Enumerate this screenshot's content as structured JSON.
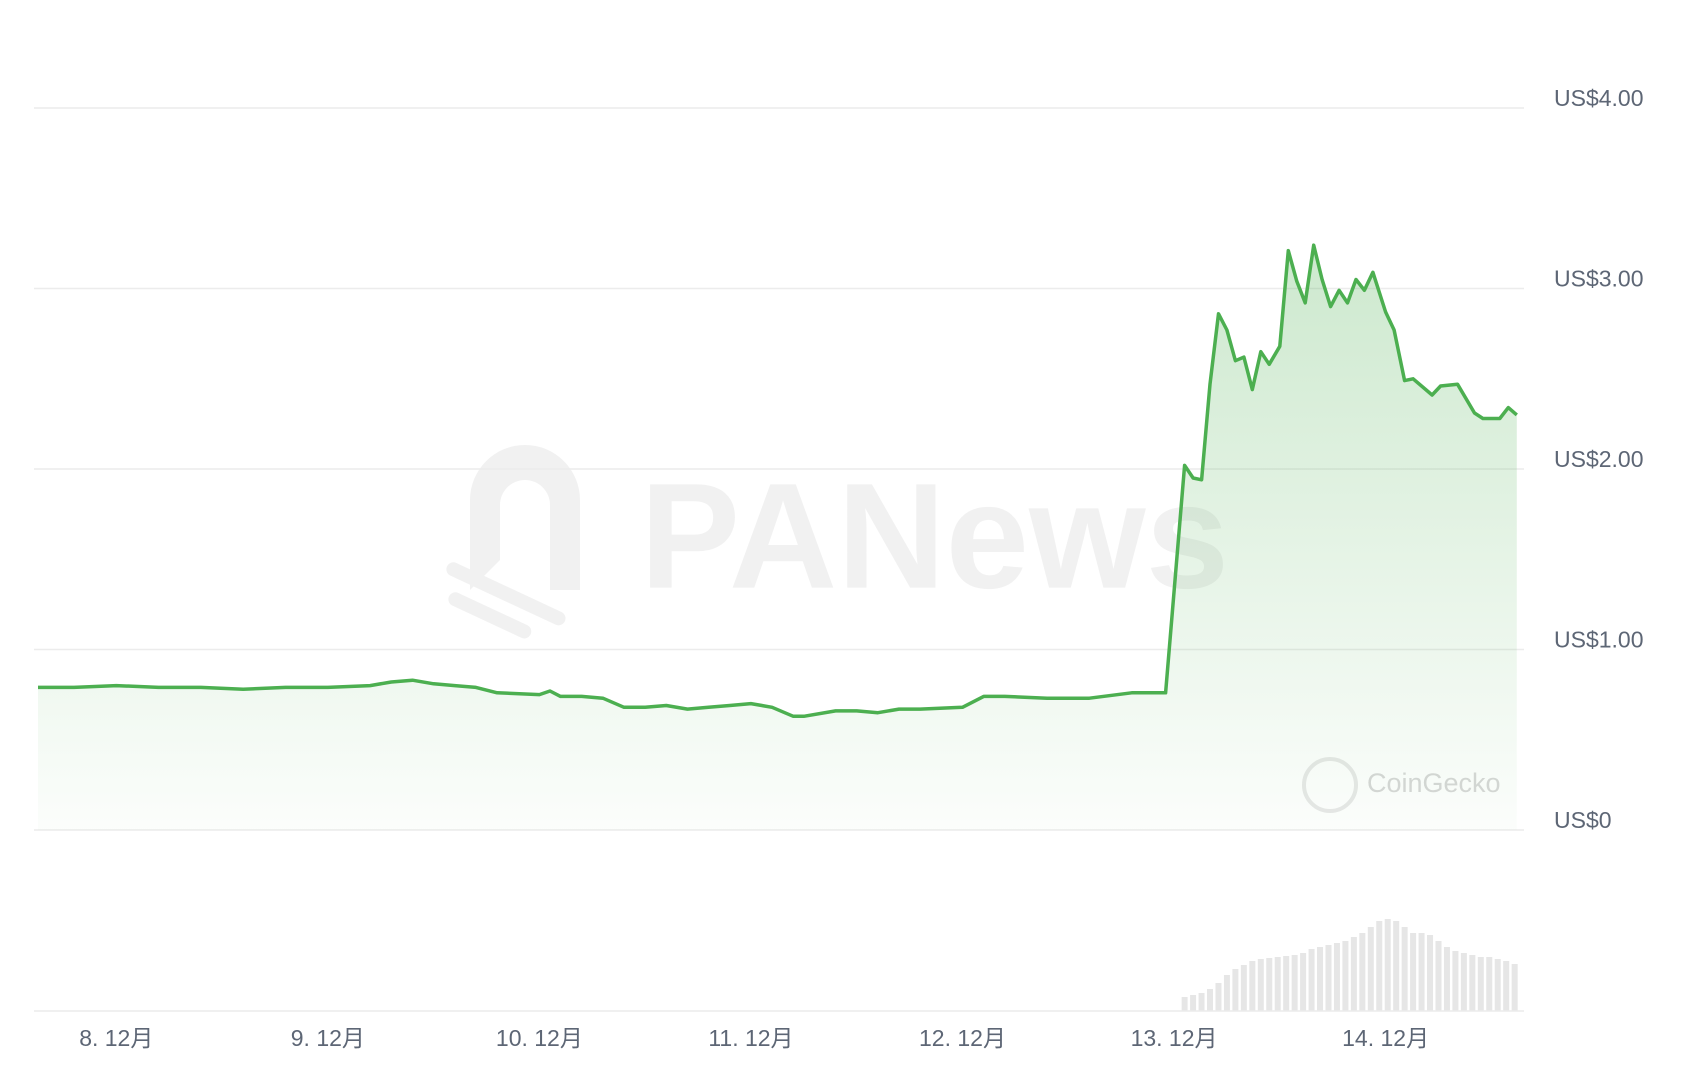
{
  "chart_data": {
    "type": "line",
    "x": [
      7.63,
      7.8,
      8.0,
      8.2,
      8.4,
      8.6,
      8.8,
      9.0,
      9.2,
      9.3,
      9.4,
      9.5,
      9.6,
      9.7,
      9.8,
      10.0,
      10.05,
      10.1,
      10.2,
      10.3,
      10.4,
      10.5,
      10.6,
      10.7,
      10.8,
      10.9,
      11.0,
      11.1,
      11.2,
      11.25,
      11.4,
      11.5,
      11.6,
      11.7,
      11.8,
      12.0,
      12.1,
      12.2,
      12.4,
      12.6,
      12.8,
      12.96,
      13.05,
      13.09,
      13.13,
      13.17,
      13.21,
      13.25,
      13.29,
      13.33,
      13.37,
      13.41,
      13.45,
      13.5,
      13.54,
      13.58,
      13.62,
      13.66,
      13.7,
      13.74,
      13.78,
      13.82,
      13.86,
      13.9,
      13.94,
      14.0,
      14.04,
      14.09,
      14.13,
      14.22,
      14.26,
      14.34,
      14.42,
      14.46,
      14.54,
      14.58,
      14.62
    ],
    "series": [
      {
        "color": "#4caf50",
        "values": [
          0.79,
          0.79,
          0.8,
          0.79,
          0.79,
          0.78,
          0.79,
          0.79,
          0.8,
          0.82,
          0.83,
          0.81,
          0.8,
          0.79,
          0.76,
          0.75,
          0.77,
          0.74,
          0.74,
          0.73,
          0.68,
          0.68,
          0.69,
          0.67,
          0.68,
          0.69,
          0.7,
          0.68,
          0.63,
          0.63,
          0.66,
          0.66,
          0.65,
          0.67,
          0.67,
          0.68,
          0.74,
          0.74,
          0.73,
          0.73,
          0.76,
          0.76,
          2.02,
          1.95,
          1.94,
          2.47,
          2.86,
          2.77,
          2.6,
          2.62,
          2.44,
          2.65,
          2.58,
          2.68,
          3.21,
          3.04,
          2.92,
          3.24,
          3.05,
          2.9,
          2.99,
          2.92,
          3.05,
          2.99,
          3.09,
          2.87,
          2.77,
          2.49,
          2.5,
          2.41,
          2.46,
          2.47,
          2.31,
          2.28,
          2.28,
          2.34,
          2.3
        ]
      }
    ],
    "volume": {
      "color": "#e6e6e6",
      "x": [
        13.05,
        13.09,
        13.13,
        13.17,
        13.21,
        13.25,
        13.29,
        13.33,
        13.37,
        13.41,
        13.45,
        13.49,
        13.53,
        13.57,
        13.61,
        13.65,
        13.69,
        13.73,
        13.77,
        13.81,
        13.85,
        13.89,
        13.93,
        13.97,
        14.01,
        14.05,
        14.09,
        14.13,
        14.17,
        14.21,
        14.25,
        14.29,
        14.33,
        14.37,
        14.41,
        14.45,
        14.49,
        14.53,
        14.57,
        14.61
      ],
      "values": [
        14,
        16,
        18,
        22,
        28,
        36,
        42,
        46,
        50,
        52,
        53,
        54,
        55,
        56,
        58,
        62,
        64,
        66,
        68,
        70,
        74,
        78,
        84,
        90,
        92,
        90,
        84,
        78,
        78,
        76,
        70,
        64,
        60,
        58,
        56,
        54,
        54,
        52,
        50,
        47
      ],
      "ylim": [
        0,
        100
      ]
    },
    "xlim": [
      7.63,
      14.64
    ],
    "xticks": [
      {
        "value": 8,
        "label": "8. 12月"
      },
      {
        "value": 9,
        "label": "9. 12月"
      },
      {
        "value": 10,
        "label": "10. 12月"
      },
      {
        "value": 11,
        "label": "11. 12月"
      },
      {
        "value": 12,
        "label": "12. 12月"
      },
      {
        "value": 13,
        "label": "13. 12月"
      },
      {
        "value": 14,
        "label": "14. 12月"
      }
    ],
    "ylim": [
      0,
      4
    ],
    "yticks": [
      {
        "value": 0,
        "label": "US$0"
      },
      {
        "value": 1,
        "label": "US$1.00"
      },
      {
        "value": 2,
        "label": "US$2.00"
      },
      {
        "value": 3,
        "label": "US$3.00"
      },
      {
        "value": 4,
        "label": "US$4.00"
      }
    ],
    "grid": true,
    "watermarks": [
      "PANews",
      "CoinGecko"
    ]
  }
}
